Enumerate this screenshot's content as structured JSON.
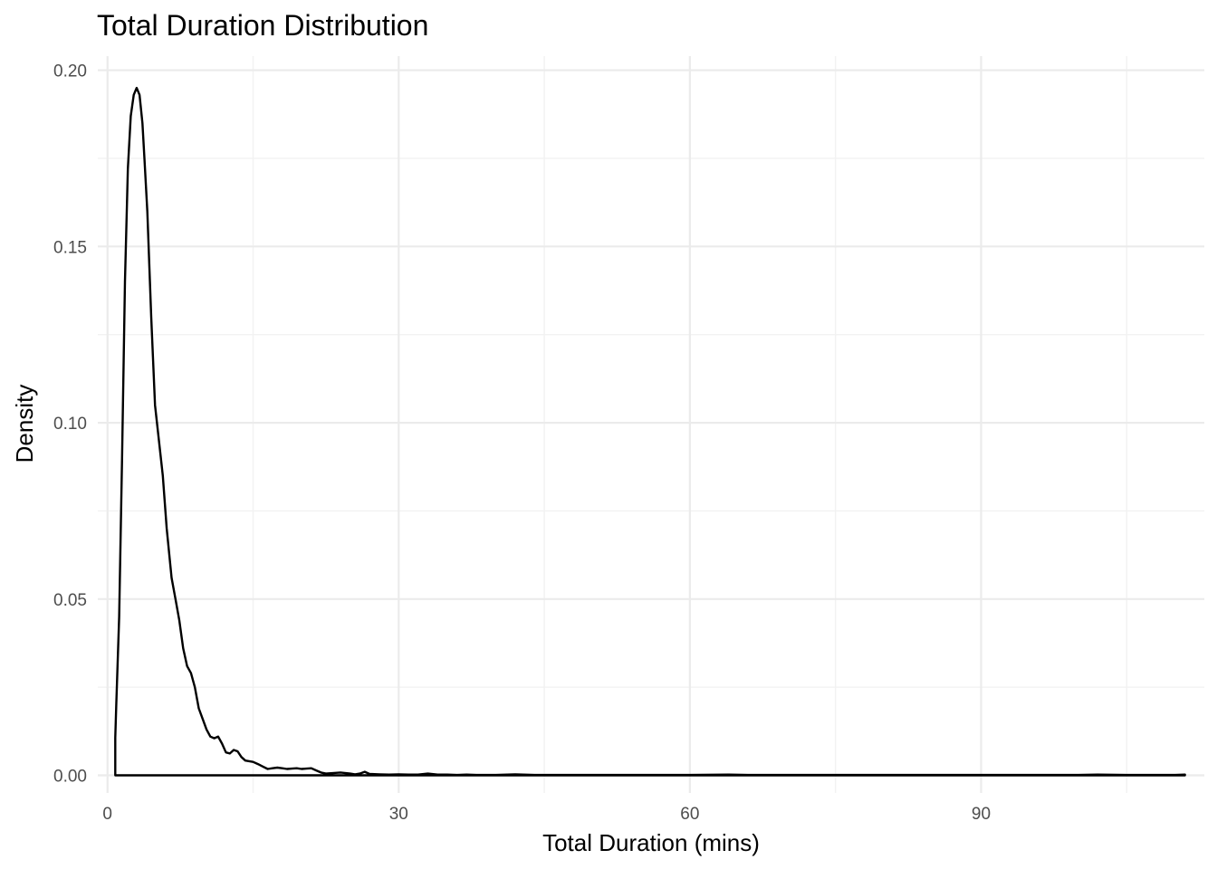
{
  "chart_data": {
    "type": "line",
    "title": "Total Duration Distribution",
    "xlabel": "Total Duration (mins)",
    "ylabel": "Density",
    "xlim": [
      -1,
      113
    ],
    "ylim": [
      -0.005,
      0.204
    ],
    "x_ticks": [
      0,
      30,
      60,
      90
    ],
    "x_tick_labels": [
      "0",
      "30",
      "60",
      "90"
    ],
    "x_minor_ticks": [
      15,
      45,
      75,
      105
    ],
    "y_ticks": [
      0.0,
      0.05,
      0.1,
      0.15,
      0.2
    ],
    "y_tick_labels": [
      "0.00",
      "0.05",
      "0.10",
      "0.15",
      "0.20"
    ],
    "y_minor_ticks": [
      0.025,
      0.075,
      0.125,
      0.175
    ],
    "grid": true,
    "legend": "none",
    "line_color": "#000000",
    "series": [
      {
        "x": [
          0.8,
          0.9,
          1.2,
          1.5,
          1.8,
          2.1,
          2.4,
          2.7,
          3.0,
          3.3,
          3.6,
          3.8,
          4.1,
          4.5,
          4.9,
          5.3,
          5.7,
          6.1,
          6.6,
          7.0,
          7.4,
          7.8,
          8.2,
          8.6,
          9.0,
          9.4,
          9.8,
          10.2,
          10.6,
          11.0,
          11.4,
          11.8,
          12.2,
          12.6,
          13.0,
          13.4,
          13.8,
          14.2,
          14.6,
          15.0,
          15.5,
          16.0,
          16.5,
          17.0,
          17.5,
          18.0,
          18.5,
          19.0,
          19.5,
          20.0,
          20.5,
          21.0,
          21.5,
          22.0,
          22.5,
          23.0,
          24.0,
          25.0,
          25.5,
          26.0,
          26.5,
          27.0,
          28.0,
          29.0,
          30.0,
          31.0,
          32.0,
          33.0,
          34.0,
          35.0,
          36.0,
          37.0,
          38.0,
          40.0,
          42.0,
          44.0,
          47.0,
          50.0,
          55.0,
          60.0,
          64.0,
          66.0,
          68.0,
          72.0,
          76.0,
          80.0,
          85.0,
          90.0,
          95.0,
          100.0,
          102.0,
          105.0,
          110.0,
          111.0,
          111.0,
          0.8,
          0.8
        ],
        "y": [
          0.0107,
          0.02,
          0.045,
          0.09,
          0.14,
          0.172,
          0.187,
          0.193,
          0.195,
          0.193,
          0.185,
          0.175,
          0.16,
          0.13,
          0.105,
          0.095,
          0.085,
          0.07,
          0.056,
          0.05,
          0.044,
          0.036,
          0.031,
          0.029,
          0.025,
          0.019,
          0.016,
          0.013,
          0.011,
          0.0105,
          0.011,
          0.009,
          0.0065,
          0.0062,
          0.0072,
          0.0068,
          0.0052,
          0.0042,
          0.004,
          0.0038,
          0.0032,
          0.0025,
          0.0018,
          0.002,
          0.0022,
          0.002,
          0.0018,
          0.0019,
          0.002,
          0.0018,
          0.0019,
          0.002,
          0.0014,
          0.0008,
          0.0005,
          0.0006,
          0.0008,
          0.0005,
          0.0003,
          0.0005,
          0.001,
          0.0004,
          0.0003,
          0.0002,
          0.0003,
          0.0002,
          0.0002,
          0.0005,
          0.0002,
          0.0002,
          0.0001,
          0.0002,
          0.0001,
          0.0001,
          0.0003,
          0.0001,
          0.0001,
          0.0001,
          0.0001,
          0.0001,
          0.0002,
          0.0001,
          0.0001,
          0.0001,
          0.0001,
          0.0001,
          0.0001,
          0.0001,
          0.0001,
          0.0001,
          0.0002,
          0.0001,
          0.0001,
          0.0002,
          0.0,
          0.0,
          0.0107
        ]
      }
    ]
  }
}
